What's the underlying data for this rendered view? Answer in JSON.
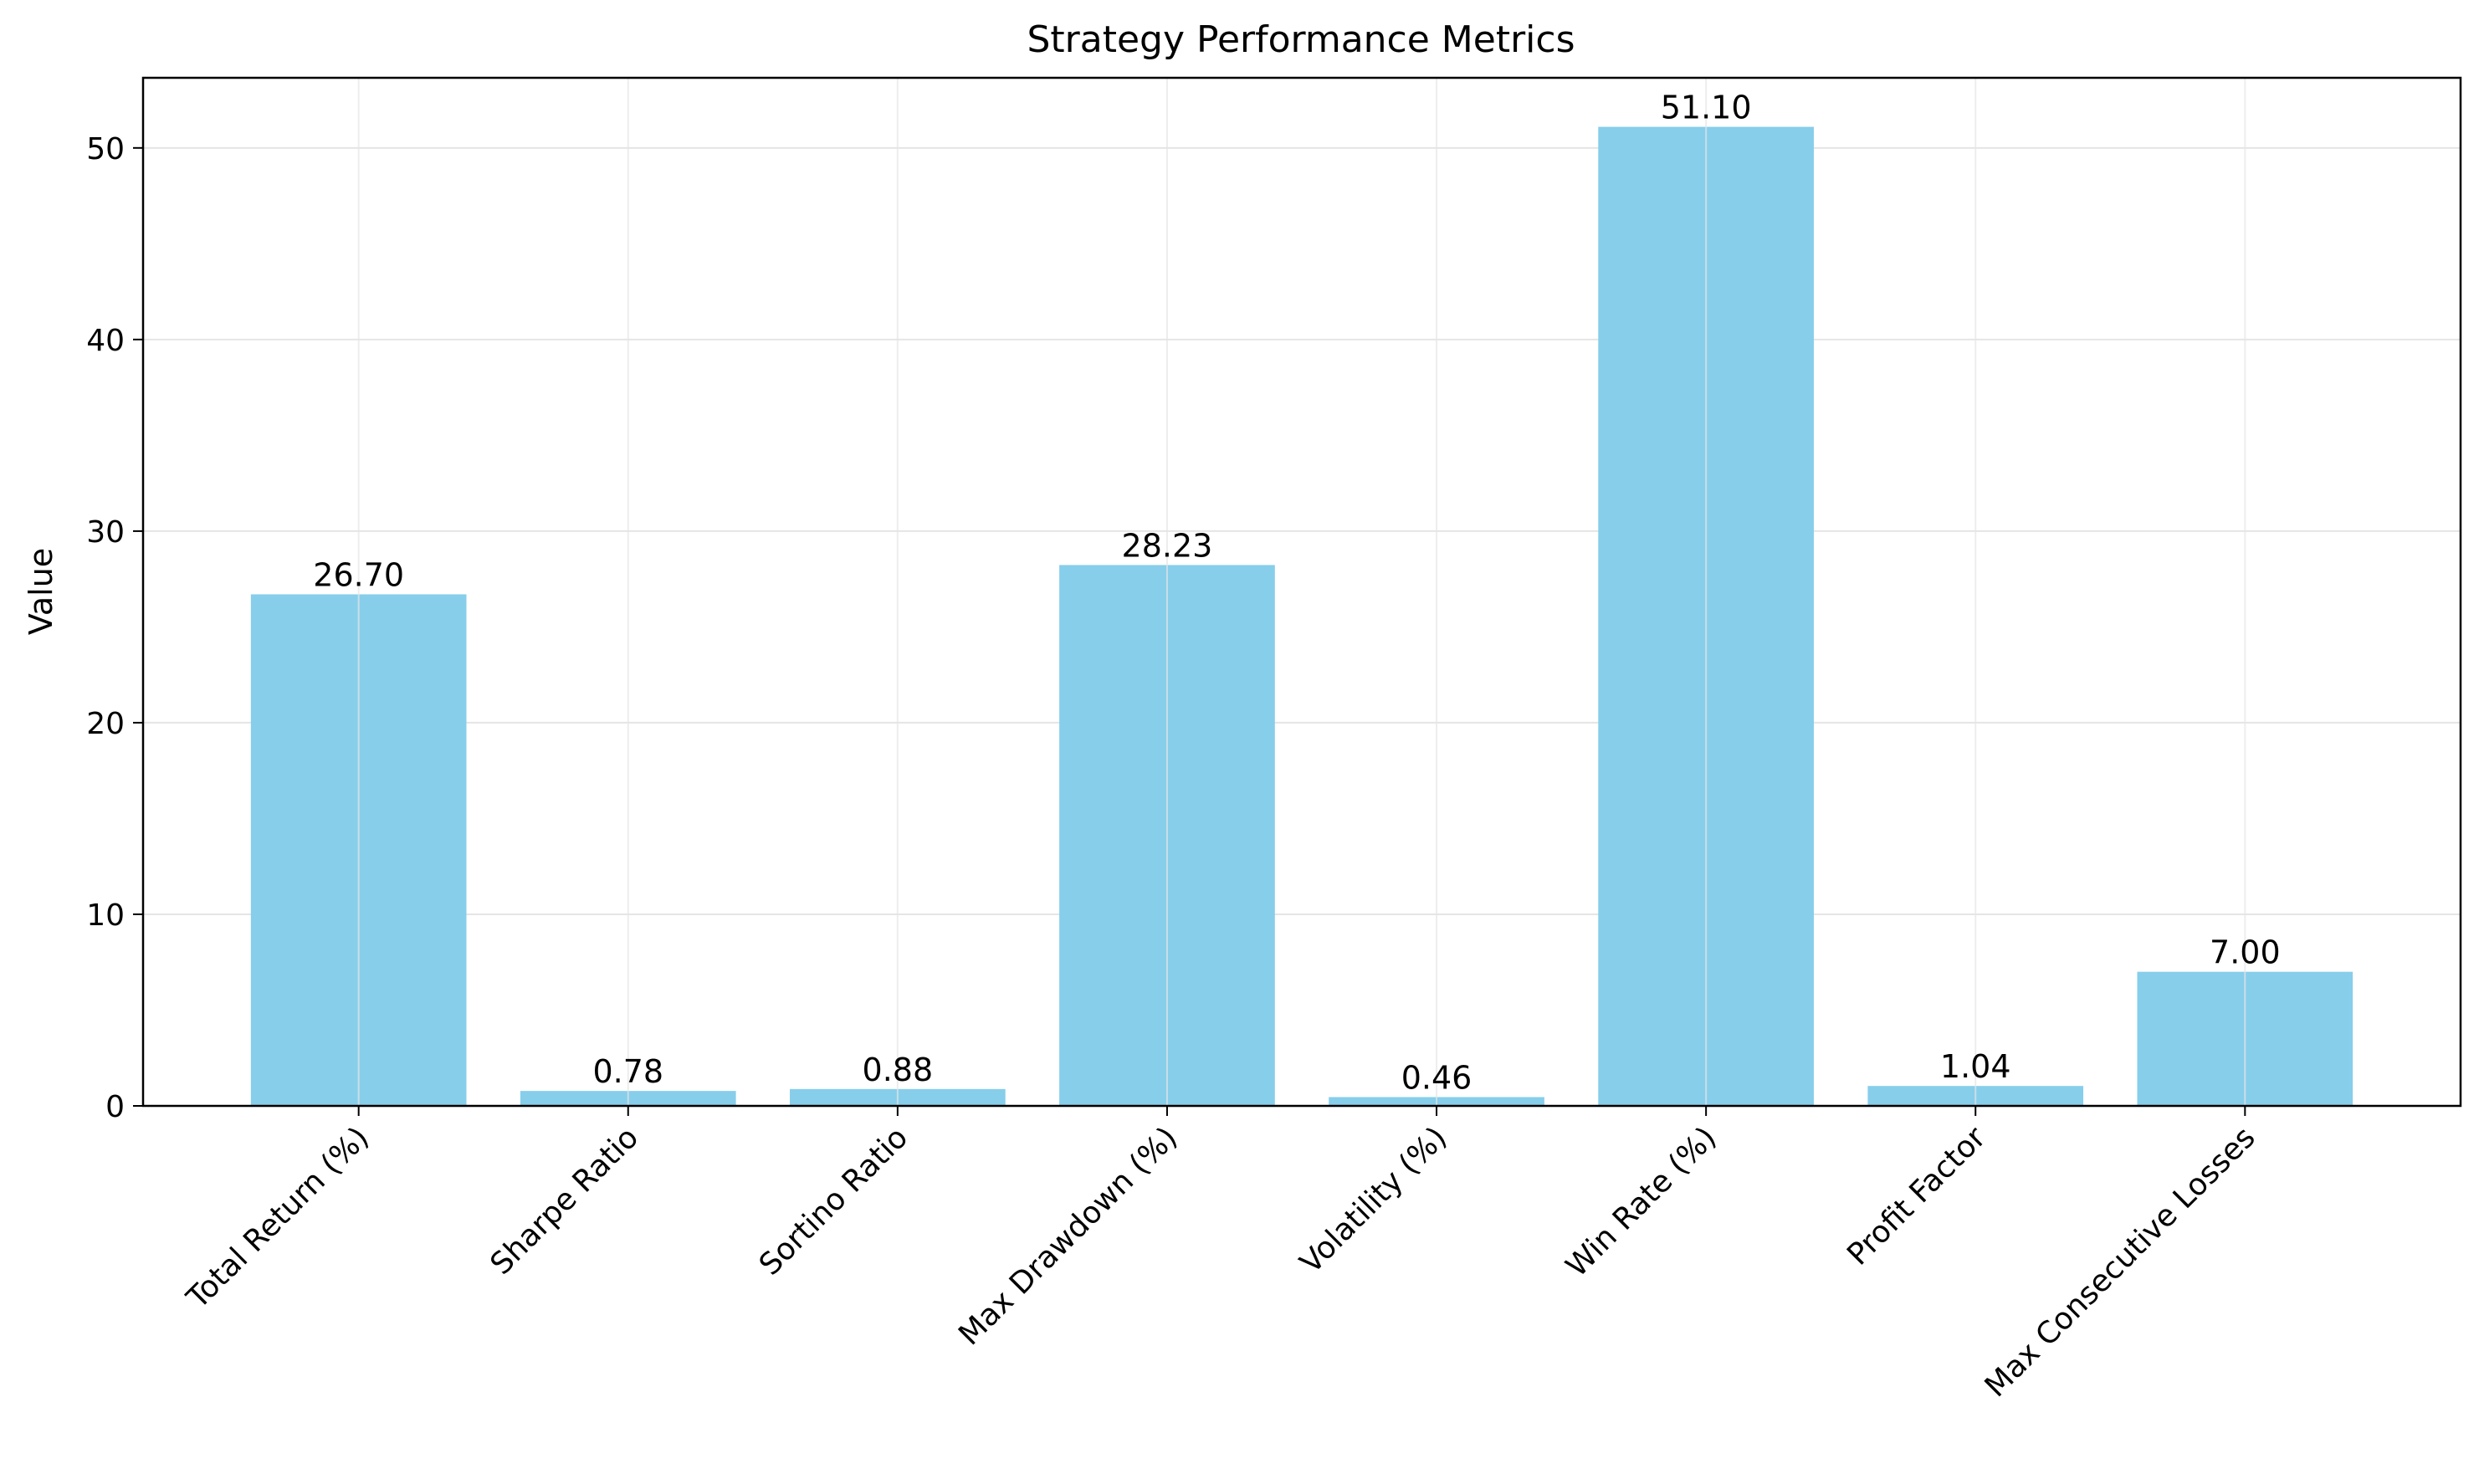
{
  "chart_data": {
    "type": "bar",
    "title": "Strategy Performance Metrics",
    "xlabel": "",
    "ylabel": "Value",
    "categories": [
      "Total Return (%)",
      "Sharpe Ratio",
      "Sortino Ratio",
      "Max Drawdown (%)",
      "Volatility (%)",
      "Win Rate (%)",
      "Profit Factor",
      "Max Consecutive Losses"
    ],
    "values": [
      26.7,
      0.78,
      0.88,
      28.23,
      0.46,
      51.1,
      1.04,
      7.0
    ],
    "value_labels": [
      "26.70",
      "0.78",
      "0.88",
      "28.23",
      "0.46",
      "51.10",
      "1.04",
      "7.00"
    ],
    "ylim": [
      0,
      53.66
    ],
    "yticks": [
      0,
      10,
      20,
      30,
      40,
      50
    ],
    "grid": true,
    "legend": "none",
    "colors": {
      "bar": "#87ceeb",
      "grid": "#e5e5e5",
      "axis": "#000000",
      "text": "#000000"
    }
  }
}
